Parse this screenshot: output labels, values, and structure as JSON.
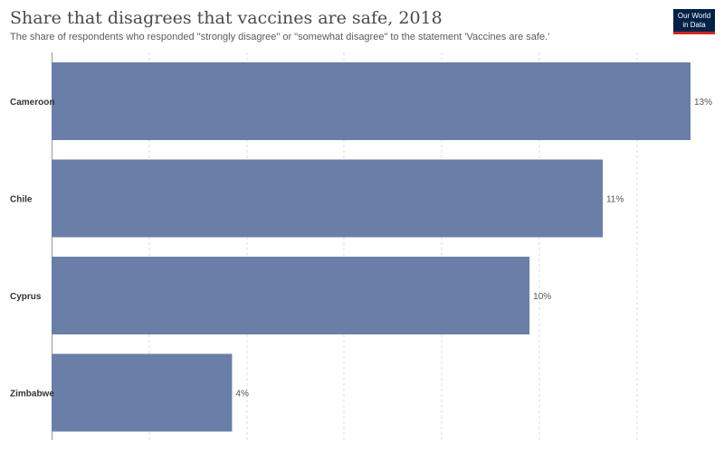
{
  "header": {
    "title": "Share that disagrees that vaccines are safe, 2018",
    "subtitle": "The share of respondents who responded \"strongly disagree\" or \"somewhat disagree\" to the statement 'Vaccines are safe.'",
    "logo_line1": "Our World",
    "logo_line2": "in Data"
  },
  "colors": {
    "bar": "#6a7fa8",
    "logo_bg": "#002147",
    "logo_accent": "#ce261e"
  },
  "chart_data": {
    "type": "bar",
    "orientation": "horizontal",
    "title": "Share that disagrees that vaccines are safe, 2018",
    "categories": [
      "Cameroon",
      "Chile",
      "Cyprus",
      "Zimbabwe"
    ],
    "values": [
      13.1,
      11.3,
      9.8,
      3.7
    ],
    "labels": [
      "13%",
      "11%",
      "10%",
      "4%"
    ],
    "xlim": [
      0,
      13.1
    ],
    "grid": true,
    "legend": "none"
  }
}
